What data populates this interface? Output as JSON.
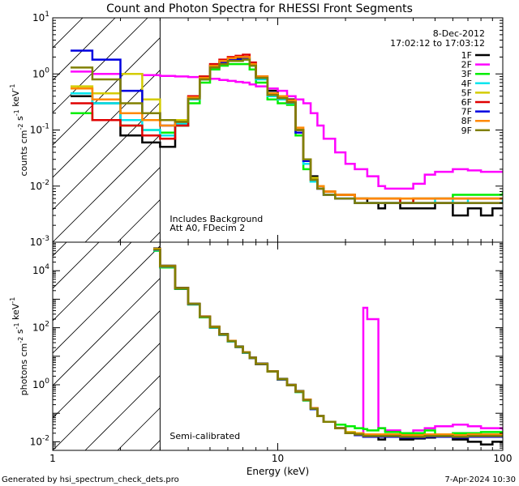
{
  "title": "Count and Photon Spectra for RHESSI Front Segments",
  "date": "8-Dec-2012",
  "time_range": "17:02:12 to 17:03:12",
  "footer_left": "Generated by hsi_spectrum_check_dets.pro",
  "footer_right": "7-Apr-2024 10:30",
  "colors": {
    "1F": "#000000",
    "2F": "#ff00ff",
    "3F": "#00ee00",
    "4F": "#00e5ee",
    "5F": "#d4cc00",
    "6F": "#e00000",
    "7F": "#0000e0",
    "8F": "#ff8800",
    "9F": "#808000"
  },
  "chart_data": [
    {
      "type": "line",
      "panel": "top",
      "xscale": "log",
      "yscale": "log",
      "xlim": [
        1,
        100
      ],
      "ylim": [
        0.001,
        10
      ],
      "ylabel": "counts cm^-2 s^-1 keV^-1",
      "yticks": [
        {
          "v": 0.001,
          "label": "10^-3"
        },
        {
          "v": 0.01,
          "label": "10^-2"
        },
        {
          "v": 0.1,
          "label": "10^-1"
        },
        {
          "v": 1,
          "label": "10^0"
        },
        {
          "v": 10,
          "label": "10^1"
        }
      ],
      "hatch_below_keV": 3,
      "annotations": [
        "Includes Background",
        "Att A0, FDecim 2"
      ],
      "legend": [
        "1F",
        "2F",
        "3F",
        "4F",
        "5F",
        "6F",
        "7F",
        "8F",
        "9F"
      ],
      "x": [
        1.2,
        1.5,
        2,
        2.5,
        3,
        3.5,
        4,
        4.5,
        5,
        5.5,
        6,
        6.5,
        7,
        7.5,
        8,
        9,
        10,
        11,
        12,
        13,
        14,
        15,
        16,
        18,
        20,
        22,
        25,
        28,
        30,
        35,
        40,
        45,
        50,
        60,
        70,
        80,
        90,
        100
      ],
      "series": [
        {
          "name": "1F",
          "values": [
            0.4,
            0.3,
            0.08,
            0.06,
            0.05,
            0.12,
            0.35,
            0.8,
            1.4,
            1.6,
            1.8,
            1.9,
            2.0,
            1.5,
            0.9,
            0.5,
            0.4,
            0.35,
            0.1,
            0.03,
            0.015,
            0.01,
            0.008,
            0.007,
            0.007,
            0.006,
            0.005,
            0.004,
            0.005,
            0.004,
            0.004,
            0.004,
            0.005,
            0.003,
            0.004,
            0.003,
            0.004,
            0.004
          ]
        },
        {
          "name": "2F",
          "values": [
            1.1,
            1.0,
            1.0,
            0.95,
            0.92,
            0.9,
            0.88,
            0.85,
            0.82,
            0.78,
            0.75,
            0.72,
            0.7,
            0.65,
            0.6,
            0.55,
            0.5,
            0.4,
            0.35,
            0.3,
            0.2,
            0.12,
            0.07,
            0.04,
            0.025,
            0.02,
            0.015,
            0.01,
            0.009,
            0.009,
            0.011,
            0.016,
            0.018,
            0.02,
            0.019,
            0.018,
            0.018,
            0.018
          ]
        },
        {
          "name": "3F",
          "values": [
            0.2,
            0.15,
            0.12,
            0.1,
            0.09,
            0.12,
            0.3,
            0.7,
            1.2,
            1.4,
            1.5,
            1.5,
            1.5,
            1.2,
            0.7,
            0.35,
            0.3,
            0.28,
            0.08,
            0.02,
            0.012,
            0.01,
            0.008,
            0.007,
            0.007,
            0.006,
            0.006,
            0.006,
            0.006,
            0.005,
            0.006,
            0.006,
            0.006,
            0.007,
            0.007,
            0.007,
            0.007,
            0.008
          ]
        },
        {
          "name": "4F",
          "values": [
            0.45,
            0.3,
            0.15,
            0.1,
            0.08,
            0.13,
            0.35,
            0.8,
            1.3,
            1.5,
            1.7,
            1.7,
            1.8,
            1.4,
            0.8,
            0.4,
            0.35,
            0.3,
            0.09,
            0.025,
            0.012,
            0.009,
            0.007,
            0.006,
            0.006,
            0.005,
            0.005,
            0.005,
            0.005,
            0.005,
            0.005,
            0.005,
            0.006,
            0.005,
            0.006,
            0.006,
            0.006,
            0.005
          ]
        },
        {
          "name": "5F",
          "values": [
            0.6,
            0.45,
            1.0,
            0.35,
            0.15,
            0.15,
            0.4,
            0.9,
            1.4,
            1.6,
            1.8,
            1.8,
            1.9,
            1.5,
            0.9,
            0.45,
            0.38,
            0.32,
            0.1,
            0.03,
            0.014,
            0.01,
            0.008,
            0.007,
            0.007,
            0.006,
            0.006,
            0.006,
            0.006,
            0.006,
            0.006,
            0.006,
            0.006,
            0.006,
            0.006,
            0.006,
            0.006,
            0.006
          ]
        },
        {
          "name": "6F",
          "values": [
            0.3,
            0.15,
            0.12,
            0.08,
            0.07,
            0.12,
            0.4,
            0.9,
            1.5,
            1.8,
            2.0,
            2.1,
            2.2,
            1.6,
            0.9,
            0.45,
            0.4,
            0.33,
            0.1,
            0.03,
            0.013,
            0.009,
            0.008,
            0.007,
            0.007,
            0.006,
            0.006,
            0.006,
            0.006,
            0.005,
            0.006,
            0.006,
            0.006,
            0.006,
            0.006,
            0.006,
            0.006,
            0.006
          ]
        },
        {
          "name": "7F",
          "values": [
            2.6,
            1.8,
            0.5,
            0.2,
            0.12,
            0.14,
            0.38,
            0.85,
            1.4,
            1.6,
            1.8,
            1.8,
            1.9,
            1.5,
            0.85,
            0.42,
            0.37,
            0.31,
            0.09,
            0.028,
            0.013,
            0.009,
            0.007,
            0.006,
            0.006,
            0.005,
            0.005,
            0.005,
            0.005,
            0.005,
            0.005,
            0.005,
            0.005,
            0.005,
            0.005,
            0.005,
            0.005,
            0.005
          ]
        },
        {
          "name": "8F",
          "values": [
            0.55,
            0.35,
            0.2,
            0.15,
            0.12,
            0.14,
            0.38,
            0.85,
            1.4,
            1.7,
            1.9,
            2.0,
            2.0,
            1.5,
            0.9,
            0.45,
            0.4,
            0.34,
            0.11,
            0.03,
            0.013,
            0.01,
            0.008,
            0.007,
            0.007,
            0.006,
            0.006,
            0.006,
            0.006,
            0.006,
            0.006,
            0.006,
            0.006,
            0.006,
            0.006,
            0.006,
            0.006,
            0.006
          ]
        },
        {
          "name": "9F",
          "values": [
            1.3,
            0.8,
            0.3,
            0.2,
            0.15,
            0.14,
            0.36,
            0.8,
            1.3,
            1.5,
            1.7,
            1.7,
            1.8,
            1.4,
            0.85,
            0.42,
            0.37,
            0.31,
            0.1,
            0.03,
            0.013,
            0.009,
            0.007,
            0.006,
            0.006,
            0.005,
            0.005,
            0.005,
            0.005,
            0.005,
            0.005,
            0.005,
            0.005,
            0.005,
            0.005,
            0.005,
            0.005,
            0.005
          ]
        }
      ]
    },
    {
      "type": "line",
      "panel": "bottom",
      "xscale": "log",
      "yscale": "log",
      "xlim": [
        1,
        100
      ],
      "ylim": [
        0.005,
        100000
      ],
      "xlabel": "Energy (keV)",
      "ylabel": "photons cm^-2 s^-1 keV^-1",
      "xticks": [
        {
          "v": 1,
          "label": "1"
        },
        {
          "v": 10,
          "label": "10"
        },
        {
          "v": 100,
          "label": "100"
        }
      ],
      "yticks": [
        {
          "v": 0.01,
          "label": "10^-2"
        },
        {
          "v": 1,
          "label": "10^0"
        },
        {
          "v": 100,
          "label": "10^2"
        },
        {
          "v": 10000,
          "label": "10^4"
        }
      ],
      "hatch_below_keV": 3,
      "annotations": [
        "Semi-calibrated"
      ],
      "x": [
        2.8,
        3,
        3.5,
        4,
        4.5,
        5,
        5.5,
        6,
        6.5,
        7,
        7.5,
        8,
        9,
        10,
        11,
        12,
        13,
        14,
        15,
        16,
        18,
        20,
        22,
        24,
        25,
        28,
        30,
        35,
        40,
        45,
        50,
        60,
        70,
        80,
        90,
        100
      ],
      "series": [
        {
          "name": "1F",
          "values": [
            60000,
            15000,
            2500,
            700,
            250,
            110,
            60,
            35,
            22,
            14,
            9,
            5.5,
            3,
            1.6,
            1.0,
            0.6,
            0.3,
            0.15,
            0.08,
            0.05,
            0.03,
            0.02,
            0.02,
            0.015,
            0.015,
            0.012,
            0.015,
            0.012,
            0.013,
            0.014,
            0.015,
            0.012,
            0.01,
            0.008,
            0.01,
            0.009
          ]
        },
        {
          "name": "2F",
          "values": [
            55000,
            14000,
            2400,
            680,
            240,
            105,
            58,
            34,
            21,
            13.5,
            8.7,
            5.3,
            2.9,
            1.55,
            0.95,
            0.58,
            0.3,
            0.15,
            0.08,
            0.05,
            0.03,
            0.02,
            0.02,
            500,
            200,
            0.03,
            0.025,
            0.02,
            0.025,
            0.03,
            0.035,
            0.04,
            0.035,
            0.03,
            0.03,
            0.025
          ]
        },
        {
          "name": "3F",
          "values": [
            50000,
            13000,
            2300,
            650,
            230,
            100,
            56,
            33,
            21,
            13,
            8.5,
            5.2,
            2.9,
            1.5,
            0.95,
            0.55,
            0.28,
            0.14,
            0.08,
            0.05,
            0.04,
            0.035,
            0.03,
            0.028,
            0.025,
            0.03,
            0.022,
            0.02,
            0.02,
            0.025,
            0.018,
            0.02,
            0.02,
            0.022,
            0.022,
            0.02
          ]
        },
        {
          "name": "4F",
          "values": [
            52000,
            13500,
            2350,
            660,
            235,
            102,
            57,
            33,
            21,
            13,
            8.6,
            5.2,
            2.9,
            1.5,
            0.96,
            0.56,
            0.29,
            0.14,
            0.08,
            0.05,
            0.03,
            0.02,
            0.018,
            0.016,
            0.015,
            0.016,
            0.016,
            0.015,
            0.015,
            0.016,
            0.016,
            0.015,
            0.016,
            0.016,
            0.016,
            0.015
          ]
        },
        {
          "name": "5F",
          "values": [
            58000,
            14500,
            2450,
            690,
            245,
            108,
            59,
            34.5,
            21.5,
            13.8,
            8.8,
            5.4,
            2.95,
            1.57,
            0.97,
            0.59,
            0.3,
            0.15,
            0.08,
            0.05,
            0.03,
            0.022,
            0.02,
            0.018,
            0.018,
            0.018,
            0.018,
            0.017,
            0.017,
            0.018,
            0.018,
            0.017,
            0.018,
            0.018,
            0.018,
            0.017
          ]
        },
        {
          "name": "6F",
          "values": [
            56000,
            14200,
            2420,
            685,
            243,
            107,
            58.5,
            34.2,
            21.3,
            13.6,
            8.7,
            5.35,
            2.92,
            1.56,
            0.96,
            0.58,
            0.3,
            0.15,
            0.08,
            0.05,
            0.03,
            0.02,
            0.019,
            0.017,
            0.017,
            0.017,
            0.017,
            0.016,
            0.016,
            0.017,
            0.017,
            0.016,
            0.017,
            0.017,
            0.017,
            0.016
          ]
        },
        {
          "name": "7F",
          "values": [
            54000,
            13800,
            2380,
            670,
            238,
            104,
            57.5,
            33.6,
            21.1,
            13.3,
            8.6,
            5.25,
            2.9,
            1.52,
            0.95,
            0.57,
            0.29,
            0.14,
            0.08,
            0.05,
            0.03,
            0.02,
            0.017,
            0.015,
            0.015,
            0.015,
            0.015,
            0.014,
            0.014,
            0.015,
            0.015,
            0.014,
            0.015,
            0.015,
            0.015,
            0.014
          ]
        },
        {
          "name": "8F",
          "values": [
            57000,
            14300,
            2430,
            688,
            244,
            108,
            59,
            34.4,
            21.4,
            13.7,
            8.75,
            5.38,
            2.93,
            1.56,
            0.97,
            0.58,
            0.3,
            0.15,
            0.08,
            0.05,
            0.03,
            0.021,
            0.019,
            0.018,
            0.018,
            0.018,
            0.018,
            0.017,
            0.017,
            0.018,
            0.018,
            0.017,
            0.018,
            0.018,
            0.018,
            0.017
          ]
        },
        {
          "name": "9F",
          "values": [
            55000,
            14000,
            2400,
            680,
            240,
            106,
            58,
            34,
            21.2,
            13.5,
            8.65,
            5.3,
            2.91,
            1.55,
            0.96,
            0.57,
            0.29,
            0.145,
            0.08,
            0.05,
            0.03,
            0.02,
            0.018,
            0.016,
            0.016,
            0.016,
            0.016,
            0.015,
            0.015,
            0.016,
            0.016,
            0.015,
            0.016,
            0.016,
            0.016,
            0.015
          ]
        }
      ]
    }
  ]
}
